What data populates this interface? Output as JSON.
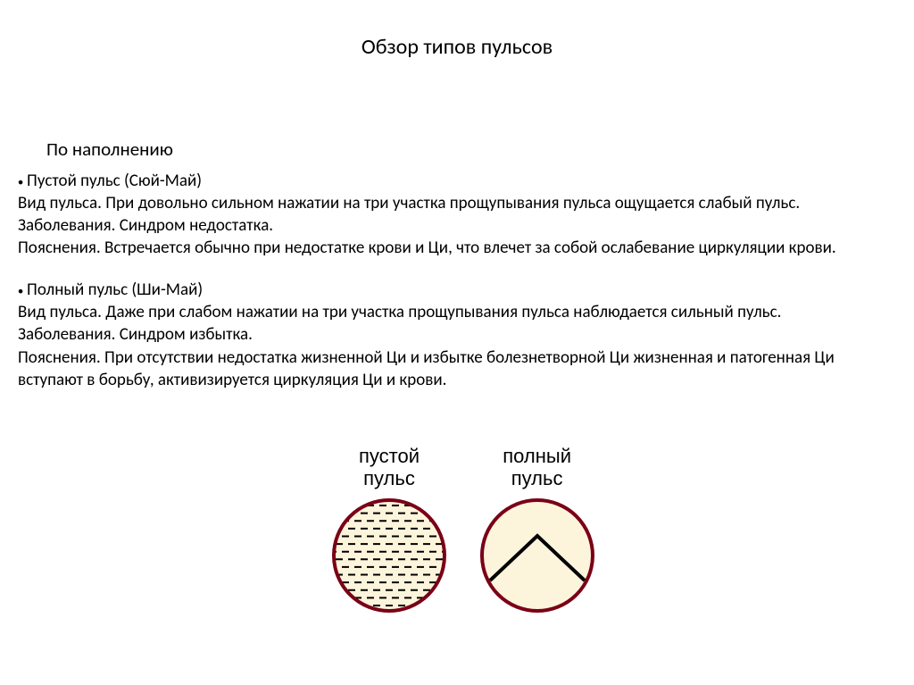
{
  "title": "Обзор типов пульсов",
  "subsection": "По наполнению",
  "para_empty": {
    "heading": "Пустой пульс  (Сюй-Май)",
    "line1": "Вид пульса. При довольно сильном нажатии на три участка прощупывания пульса ощущается слабый пульс.",
    "line2": "Заболевания. Синдром недостатка.",
    "line3": "Пояснения. Встречается обычно при недостатке крови и Ци, что влечет за собой ослабевание циркуляции крови."
  },
  "para_full": {
    "heading": "Полный пульс  (Ши-Май)",
    "line1": "Вид пульса. Даже при слабом нажатии на три участка прощупывания пульса наблюдается сильный пульс.",
    "line2": "Заболевания. Синдром избытка.",
    "line3": "Пояснения.  При отсутствии недостатка жизненной Ци и избытке болезнетворной Ци жизненная и патогенная Ци вступают в борьбу, активизируется циркуляция Ци и крови."
  },
  "diagram": {
    "empty_label_l1": "пустой",
    "empty_label_l2": "пульс",
    "full_label_l1": "полный",
    "full_label_l2": "пульс",
    "circle_radius": 62,
    "circle_stroke": "#7a0016",
    "circle_stroke_width": 4,
    "circle_fill": "#fdf4dc",
    "dash_color": "#000000",
    "dash_stroke_width": 2,
    "chevron_color": "#000000",
    "chevron_stroke_width": 4
  }
}
